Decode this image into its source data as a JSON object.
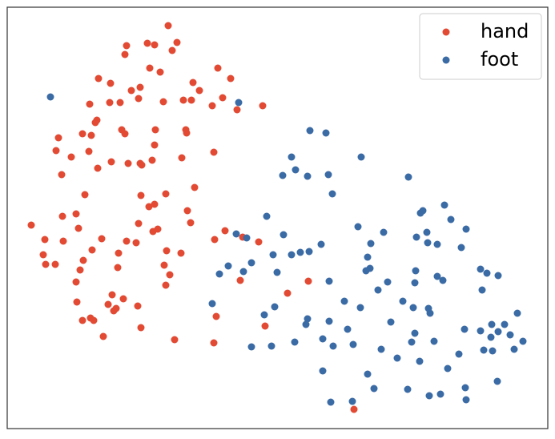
{
  "chart_data": {
    "type": "scatter",
    "xlim": [
      9,
      684
    ],
    "ylim": [
      535,
      9
    ],
    "legend": "upper right",
    "series": [
      {
        "name": "hand",
        "color": "#e24a33",
        "x": [
          210,
          158,
          184,
          193,
          221,
          156,
          215,
          187,
          200,
          123,
          241,
          272,
          288,
          138,
          175,
          164,
          249,
          112,
          137,
          150,
          173,
          204,
          229,
          239,
          265,
          278,
          296,
          328,
          121,
          119,
          103,
          152,
          156,
          194,
          232,
          233,
          73,
          114,
          193,
          70,
          89,
          111,
          139,
          160,
          175,
          177,
          190,
          227,
          267,
          122,
          77,
          106,
          176,
          207,
          243,
          186,
          193,
          95,
          78,
          234,
          39,
          98,
          173,
          238,
          281,
          56,
          79,
          127,
          158,
          170,
          191,
          197,
          268,
          303,
          323,
          115,
          148,
          208,
          54,
          57,
          69,
          104,
          226,
          100,
          147,
          205,
          95,
          140,
          212,
          207,
          359,
          385,
          300,
          96,
          135,
          142,
          145,
          154,
          172,
          103,
          113,
          117,
          270,
          331,
          176,
          129,
          218,
          267,
          442
        ],
        "y": [
          32,
          57,
          54,
          56,
          53,
          68,
          63,
          85,
          90,
          98,
          103,
          85,
          98,
          104,
          109,
          113,
          113,
          130,
          128,
          128,
          123,
          127,
          125,
          125,
          132,
          122,
          137,
          132,
          150,
          153,
          167,
          162,
          167,
          162,
          162,
          166,
          172,
          169,
          181,
          188,
          196,
          189,
          202,
          204,
          204,
          206,
          200,
          197,
          190,
          210,
          218,
          243,
          244,
          242,
          234,
          258,
          255,
          267,
          270,
          263,
          281,
          285,
          279,
          278,
          288,
          299,
          301,
          298,
          301,
          303,
          289,
          286,
          299,
          296,
          302,
          312,
          316,
          313,
          318,
          330,
          330,
          325,
          316,
          337,
          334,
          331,
          352,
          368,
          343,
          356,
          366,
          351,
          350,
          377,
          380,
          388,
          385,
          373,
          382,
          400,
          397,
          400,
          395,
          407,
          409,
          420,
          424,
          428,
          511
        ]
      },
      {
        "name": "foot",
        "color": "#3b6ba5",
        "x": [
          63,
          298,
          387,
          407,
          364,
          353,
          369,
          384,
          410,
          451,
          510,
          415,
          333,
          525,
          528,
          555,
          447,
          563,
          295,
          308,
          354,
          479,
          520,
          533,
          582,
          463,
          401,
          375,
          386,
          364,
          341,
          314,
          534,
          546,
          576,
          285,
          274,
          304,
          346,
          459,
          462,
          457,
          519,
          546,
          600,
          622,
          411,
          472,
          484,
          518,
          553,
          602,
          608,
          265,
          343,
          430,
          450,
          503,
          516,
          535,
          537,
          646,
          330,
          384,
          382,
          411,
          488,
          580,
          600,
          614,
          622,
          630,
          637,
          653,
          314,
          339,
          368,
          403,
          416,
          441,
          476,
          514,
          518,
          542,
          613,
          604,
          615,
          642,
          573,
          496,
          524,
          403,
          459,
          559,
          467,
          509,
          536,
          550,
          581,
          582,
          413,
          440,
          621,
          434
        ],
        "y": [
          121,
          128,
          163,
          166,
          196,
          219,
          212,
          220,
          218,
          196,
          221,
          242,
          270,
          266,
          263,
          256,
          283,
          274,
          292,
          297,
          293,
          290,
          296,
          290,
          286,
          304,
          305,
          315,
          314,
          318,
          318,
          328,
          303,
          305,
          309,
          332,
          342,
          339,
          340,
          321,
          335,
          338,
          338,
          345,
          336,
          344,
          351,
          362,
          352,
          353,
          350,
          362,
          341,
          379,
          383,
          376,
          384,
          376,
          384,
          385,
          391,
          391,
          393,
          398,
          405,
          401,
          402,
          411,
          413,
          405,
          414,
          405,
          418,
          426,
          433,
          432,
          427,
          423,
          432,
          430,
          436,
          427,
          416,
          426,
          421,
          437,
          438,
          436,
          442,
          447,
          451,
          463,
          467,
          460,
          485,
          486,
          494,
          492,
          484,
          499,
          502,
          501,
          476,
          411
        ]
      }
    ]
  }
}
